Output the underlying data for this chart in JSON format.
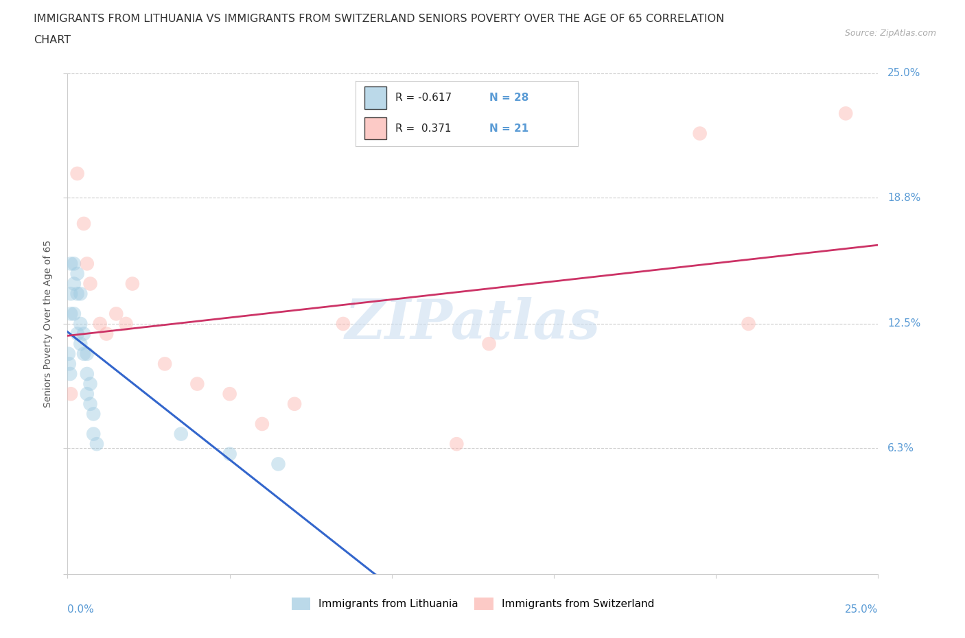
{
  "title_line1": "IMMIGRANTS FROM LITHUANIA VS IMMIGRANTS FROM SWITZERLAND SENIORS POVERTY OVER THE AGE OF 65 CORRELATION",
  "title_line2": "CHART",
  "source": "Source: ZipAtlas.com",
  "ylabel": "Seniors Poverty Over the Age of 65",
  "legend_lithuania": "Immigrants from Lithuania",
  "legend_switzerland": "Immigrants from Switzerland",
  "R_lithuania": -0.617,
  "N_lithuania": 28,
  "R_switzerland": 0.371,
  "N_switzerland": 21,
  "color_lithuania": "#9ecae1",
  "color_switzerland": "#fbb4ae",
  "color_lithuania_line": "#3366cc",
  "color_switzerland_line": "#cc3366",
  "xmin": 0.0,
  "xmax": 0.25,
  "ymin": 0.0,
  "ymax": 0.25,
  "watermark": "ZIPatlas",
  "lithuania_x": [
    0.0003,
    0.0005,
    0.0008,
    0.001,
    0.001,
    0.001,
    0.002,
    0.002,
    0.002,
    0.003,
    0.003,
    0.003,
    0.004,
    0.004,
    0.004,
    0.005,
    0.005,
    0.006,
    0.006,
    0.006,
    0.007,
    0.007,
    0.008,
    0.008,
    0.009,
    0.035,
    0.05,
    0.065
  ],
  "lithuania_y": [
    0.11,
    0.105,
    0.1,
    0.155,
    0.14,
    0.13,
    0.155,
    0.145,
    0.13,
    0.15,
    0.14,
    0.12,
    0.14,
    0.125,
    0.115,
    0.12,
    0.11,
    0.11,
    0.1,
    0.09,
    0.095,
    0.085,
    0.08,
    0.07,
    0.065,
    0.07,
    0.06,
    0.055
  ],
  "switzerland_x": [
    0.001,
    0.003,
    0.005,
    0.006,
    0.007,
    0.01,
    0.012,
    0.015,
    0.018,
    0.02,
    0.03,
    0.04,
    0.05,
    0.06,
    0.07,
    0.085,
    0.12,
    0.13,
    0.195,
    0.21,
    0.24
  ],
  "switzerland_y": [
    0.09,
    0.2,
    0.175,
    0.155,
    0.145,
    0.125,
    0.12,
    0.13,
    0.125,
    0.145,
    0.105,
    0.095,
    0.09,
    0.075,
    0.085,
    0.125,
    0.065,
    0.115,
    0.22,
    0.125,
    0.23
  ],
  "ytick_vals": [
    0.0,
    0.063,
    0.125,
    0.188,
    0.25
  ],
  "ytick_labels": [
    "",
    "6.3%",
    "12.5%",
    "18.8%",
    "25.0%"
  ],
  "xtick_label_left": "0.0%",
  "xtick_label_right": "25.0%",
  "grid_color": "#cccccc",
  "background_color": "#ffffff",
  "title_fontsize": 11.5,
  "ylabel_fontsize": 10,
  "tick_fontsize": 11,
  "legend_fontsize": 11,
  "source_fontsize": 9,
  "tick_color": "#5a9bd5",
  "axis_label_color": "#555555",
  "watermark_color": "#c8dcf0",
  "scatter_size": 220,
  "scatter_alpha": 0.45
}
